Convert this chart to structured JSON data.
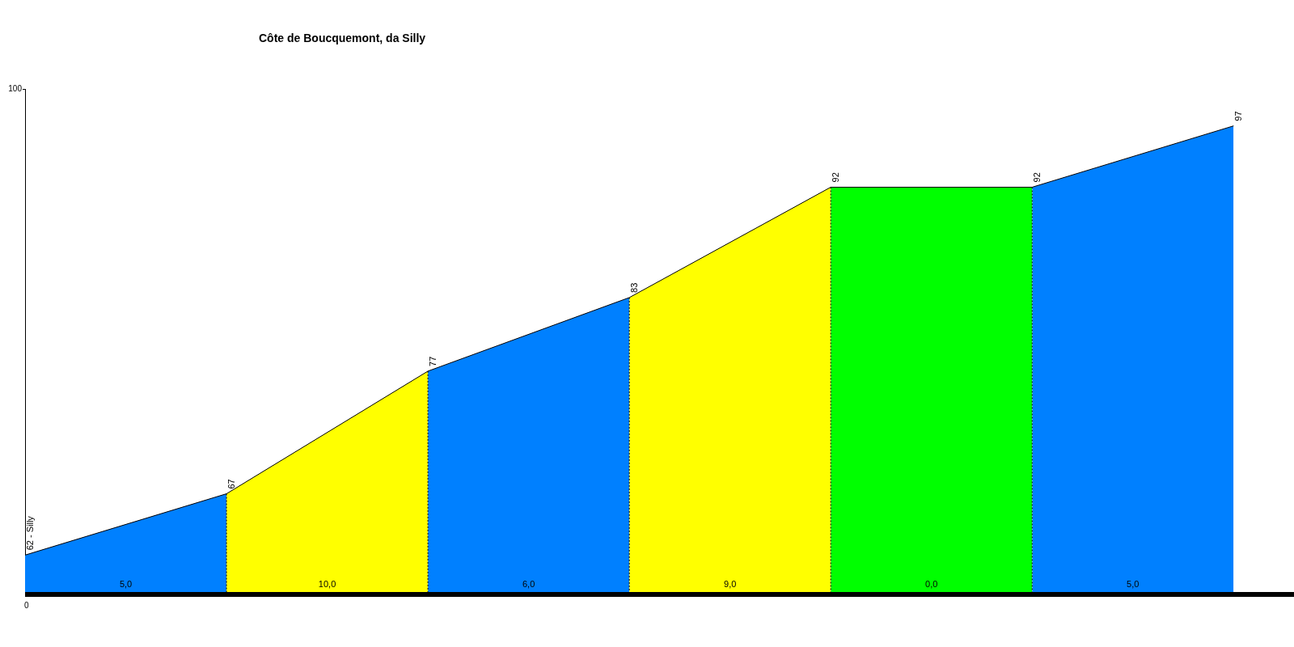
{
  "chart_data": {
    "type": "area",
    "title": "Côte de Boucquemont, da Silly",
    "legend": false,
    "categories": [
      null,
      null,
      null,
      null,
      null,
      null,
      null
    ],
    "series": [
      {
        "values": [
          62,
          67,
          null,
          null,
          null,
          null,
          null
        ],
        "color": "#0080ff",
        "value_labels": [
          "62 - Silly",
          "67",
          null,
          null,
          null,
          null,
          null
        ]
      },
      {
        "values": [
          null,
          67,
          77,
          null,
          null,
          null,
          null
        ],
        "color": "#ffff00",
        "value_labels": [
          null,
          null,
          "77",
          null,
          null,
          null,
          null
        ]
      },
      {
        "values": [
          null,
          null,
          77,
          83,
          null,
          null,
          null
        ],
        "color": "#0080ff",
        "value_labels": [
          null,
          null,
          null,
          "83",
          null,
          null,
          null
        ]
      },
      {
        "values": [
          null,
          null,
          null,
          83,
          92,
          null,
          null
        ],
        "color": "#ffff00",
        "value_labels": [
          null,
          null,
          null,
          null,
          "92",
          null,
          null
        ]
      },
      {
        "values": [
          null,
          null,
          null,
          null,
          92,
          92,
          null
        ],
        "color": "#00ff00",
        "value_labels": [
          null,
          null,
          null,
          null,
          null,
          "92",
          null
        ]
      },
      {
        "values": [
          null,
          null,
          null,
          null,
          null,
          92,
          97
        ],
        "color": "#0080ff",
        "value_labels": [
          null,
          null,
          null,
          null,
          null,
          null,
          "97"
        ]
      }
    ],
    "annotations": [
      "100",
      "0",
      "5,0",
      "10,0",
      "6,0",
      "9,0",
      "0,0",
      "5,0"
    ]
  }
}
